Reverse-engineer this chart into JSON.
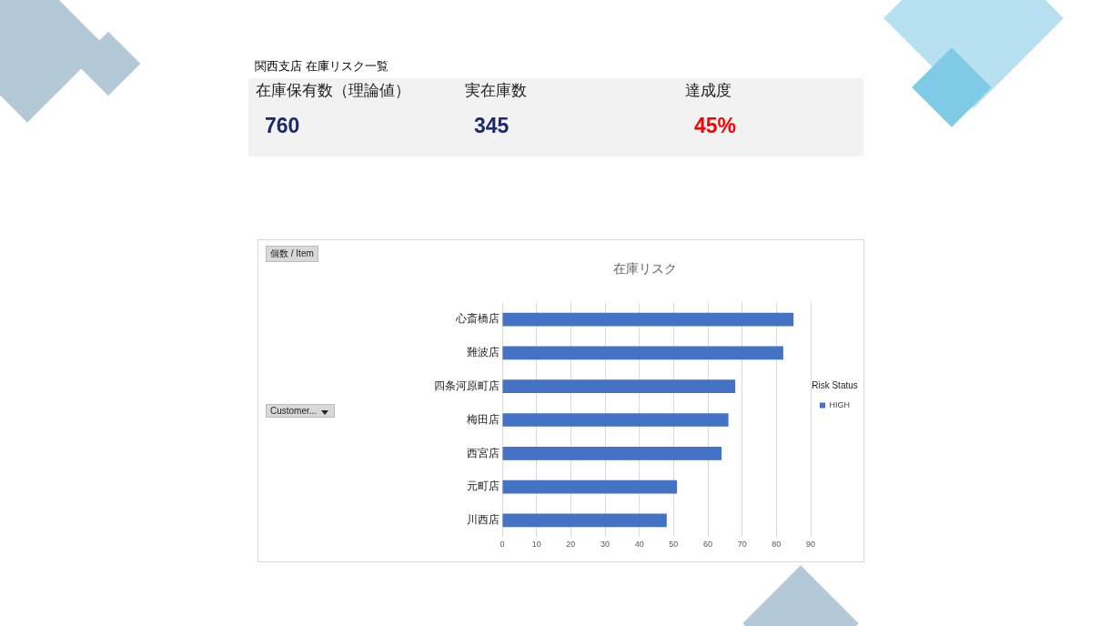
{
  "chart_data": [
    {
      "type": "other",
      "title": "関西支店 在庫リスク一覧",
      "annotations": [
        "在庫保有数（理論値）",
        "760",
        "実在庫数",
        "345",
        "達成度",
        "45%"
      ]
    },
    {
      "type": "bar",
      "orientation": "horizontal",
      "title": "在庫リスク",
      "legend_title": "Risk Status",
      "annotations": [
        "個数 / Item",
        "Customer..."
      ],
      "categories": [
        "心斎橋店",
        "難波店",
        "四条河原町店",
        "梅田店",
        "西宮店",
        "元町店",
        "川西店"
      ],
      "series": [
        {
          "name": "HIGH",
          "color": "#4472c4",
          "values": [
            85,
            82,
            68,
            66,
            64,
            51,
            48
          ]
        }
      ],
      "xlim": [
        0,
        90
      ],
      "xticks": [
        0,
        10,
        20,
        30,
        40,
        50,
        60,
        70,
        80,
        90
      ],
      "grid": "x",
      "legend": "right"
    }
  ]
}
